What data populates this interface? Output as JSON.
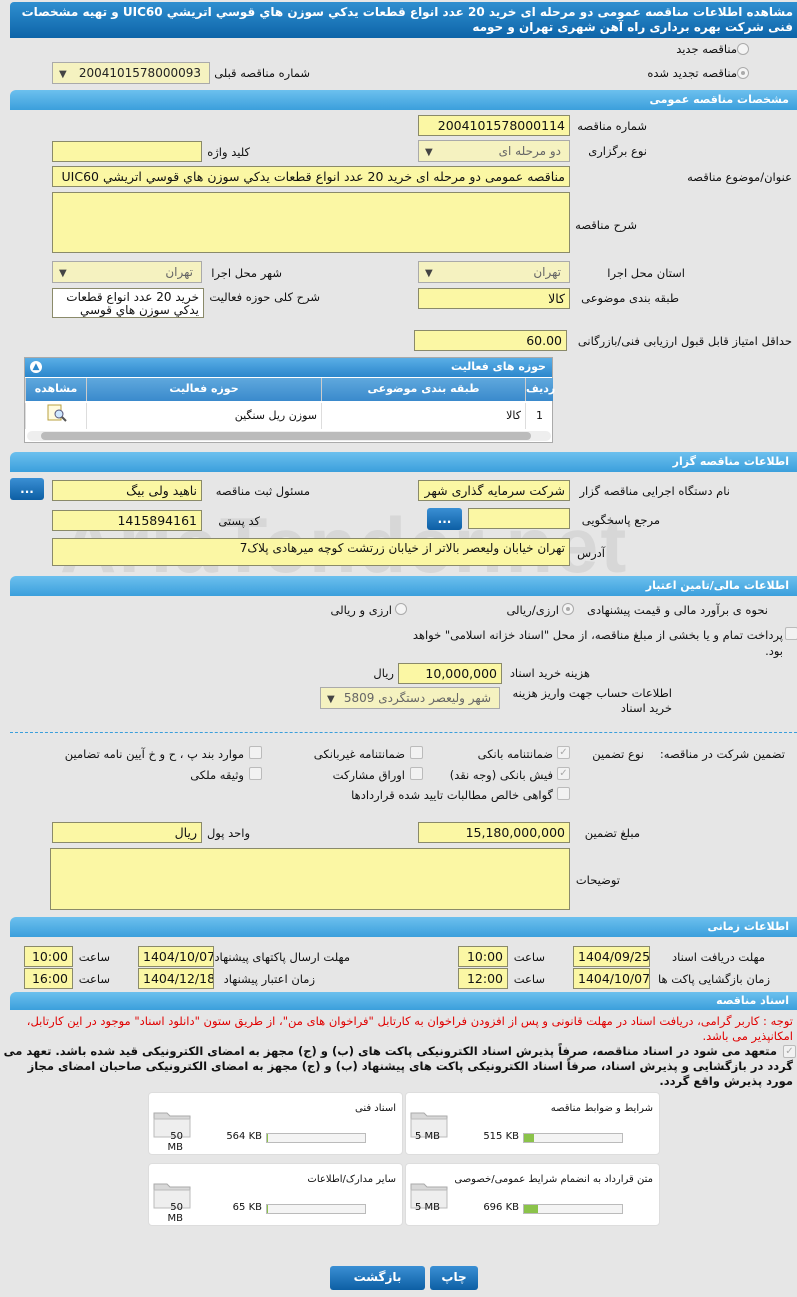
{
  "title": "مشاهده اطلاعات مناقصه عمومی دو مرحله ای خرید 20 عدد انواع قطعات يدكي سوزن هاي قوسي اتريشي UIC60 و تهيه مشخصات فنی شرکت بهره برداری راه آهن شهری تهران و حومه",
  "watermark": "AriaTender.net",
  "top": {
    "new_label": "مناقصه جدید",
    "renewed_label": "مناقصه تجدید شده",
    "prev_label": "شماره مناقصه قبلی",
    "prev_value": "2004101578000093"
  },
  "general": {
    "header": "مشخصات مناقصه عمومی",
    "number_label": "شماره مناقصه",
    "number": "2004101578000114",
    "type_label": "نوع برگزاری",
    "type": "دو مرحله ای",
    "keyword_label": "کلید واژه",
    "keyword": "",
    "subject_label": "عنوان/موضوع مناقصه",
    "subject": "مناقصه عمومی دو مرحله ای خرید 20 عدد انواع قطعات يدكي سوزن هاي قوسي اتريشي UIC60",
    "desc_label": "شرح مناقصه",
    "desc": "",
    "province_label": "استان محل اجرا",
    "province": "تهران",
    "city_label": "شهر محل اجرا",
    "city": "تهران",
    "category_label": "طبقه بندی موضوعی",
    "category": "کالا",
    "scope_label": "شرح کلی حوزه فعالیت",
    "scope": "خرید 20 عدد انواع قطعات يدكي سوزن هاي قوسي",
    "min_score_label": "حداقل امتیاز قابل قبول ارزیابی فنی/بازرگانی",
    "min_score": "60.00"
  },
  "activity": {
    "header": "حوزه های فعالیت",
    "columns": [
      "ردیف",
      "طبقه بندی موضوعی",
      "حوزه فعالیت",
      "مشاهده"
    ],
    "rows": [
      {
        "idx": "1",
        "category": "کالا",
        "field": "سوزن ریل سنگین"
      }
    ]
  },
  "org": {
    "header": "اطلاعات مناقصه گزار",
    "agency_label": "نام دستگاه اجرایی مناقصه گزار",
    "agency": "شرکت سرمایه گذاری شهر",
    "officer_label": "مسئول ثبت مناقصه",
    "officer": "ناهید ولی بیگ",
    "ref_label": "مرجع پاسخگویی",
    "ref": "",
    "postal_label": "کد پستی",
    "postal": "1415894161",
    "address_label": "آدرس",
    "address": "تهران خیابان ولیعصر بالاتر از خیابان زرتشت کوچه میرهادی پلاک7",
    "btn": "..."
  },
  "finance": {
    "header": "اطلاعات مالی/تامین اعتبار",
    "method_label": "نحوه ی برآورد مالی و قیمت پیشنهادی",
    "opt1": "ارزی/ریالی",
    "opt2": "ارزی و ریالی",
    "treasury": "پرداخت تمام و یا بخشی از مبلغ مناقصه، از محل \"اسناد خزانه اسلامی\" خواهد بود.",
    "fee_label": "هزینه خرید اسناد",
    "fee": "10,000,000",
    "fee_unit": "ریال",
    "account_label": "اطلاعات حساب جهت واریز هزینه خرید اسناد",
    "account": "شهر ولیعصر دستگردی 5809"
  },
  "guarantee": {
    "label": "تضمین شرکت در مناقصه:",
    "type_label": "نوع تضمین",
    "items": [
      {
        "label": "ضمانتنامه بانکی",
        "checked": true
      },
      {
        "label": "ضمانتنامه غیربانکی",
        "checked": false
      },
      {
        "label": "موارد بند پ ، ح و خ آیین نامه تضامین",
        "checked": false
      },
      {
        "label": "فیش بانکی (وجه نقد)",
        "checked": true
      },
      {
        "label": "اوراق مشارکت",
        "checked": false
      },
      {
        "label": "وثیقه ملکی",
        "checked": false
      },
      {
        "label": "گواهی خالص مطالبات تایید شده قراردادها",
        "checked": false
      }
    ],
    "amount_label": "مبلغ تضمین",
    "amount": "15,180,000,000",
    "currency_label": "واحد پول",
    "currency": "ریال",
    "notes_label": "توضیحات",
    "notes": ""
  },
  "time": {
    "header": "اطلاعات زمانی",
    "hour_label": "ساعت",
    "doc_deadline_label": "مهلت دریافت اسناد",
    "doc_deadline": "1404/09/25",
    "doc_deadline_time": "10:00",
    "submit_label": "مهلت ارسال پاکتهای پیشنهاد",
    "submit": "1404/10/07",
    "submit_time": "10:00",
    "open_label": "زمان بازگشایی پاکت ها",
    "open": "1404/10/07",
    "open_time": "12:00",
    "valid_label": "زمان اعتبار پیشنهاد",
    "valid": "1404/12/18",
    "valid_time": "16:00"
  },
  "docs": {
    "header": "اسناد مناقصه",
    "notice": "توجه : کاربر گرامی، دریافت اسناد در مهلت قانونی و پس از افزودن فراخوان به کارتابل \"فراخوان های من\"، از طریق ستون \"دانلود اسناد\" موجود در این کارتابل، امکانپذیر می باشد.",
    "commit": "متعهد می شود در اسناد مناقصه، صرفاً پذیرش اسناد الکترونیکی پاکت های (ب) و (ج) مجهز به امضای الکترونیکی قید شده باشد. تعهد می گردد در بازگشایی و پذیرش اسناد، صرفاً اسناد الکترونیکی پاکت های پیشنهاد (ب) و (ج) مجهز به امضای الکترونیکی صاحبان امضای مجاز مورد پذیرش واقع گردد.",
    "files": [
      {
        "name": "شرایط و ضوابط مناقصه",
        "size": "515 KB",
        "max": "5 MB",
        "pct": 10
      },
      {
        "name": "اسناد فنی",
        "size": "564 KB",
        "max": "50 MB",
        "pct": 1
      },
      {
        "name": "متن قرارداد به انضمام شرایط عمومی/خصوصی",
        "size": "696 KB",
        "max": "5 MB",
        "pct": 14
      },
      {
        "name": "سایر مدارک/اطلاعات",
        "size": "65 KB",
        "max": "50 MB",
        "pct": 0.5
      }
    ]
  },
  "buttons": {
    "print": "چاپ",
    "back": "بازگشت"
  },
  "colors": {
    "header_blue": "#0d64a8",
    "section_blue": "#3b9fdc",
    "field_yellow": "#fbf7a4",
    "notice_red": "#e00000"
  }
}
